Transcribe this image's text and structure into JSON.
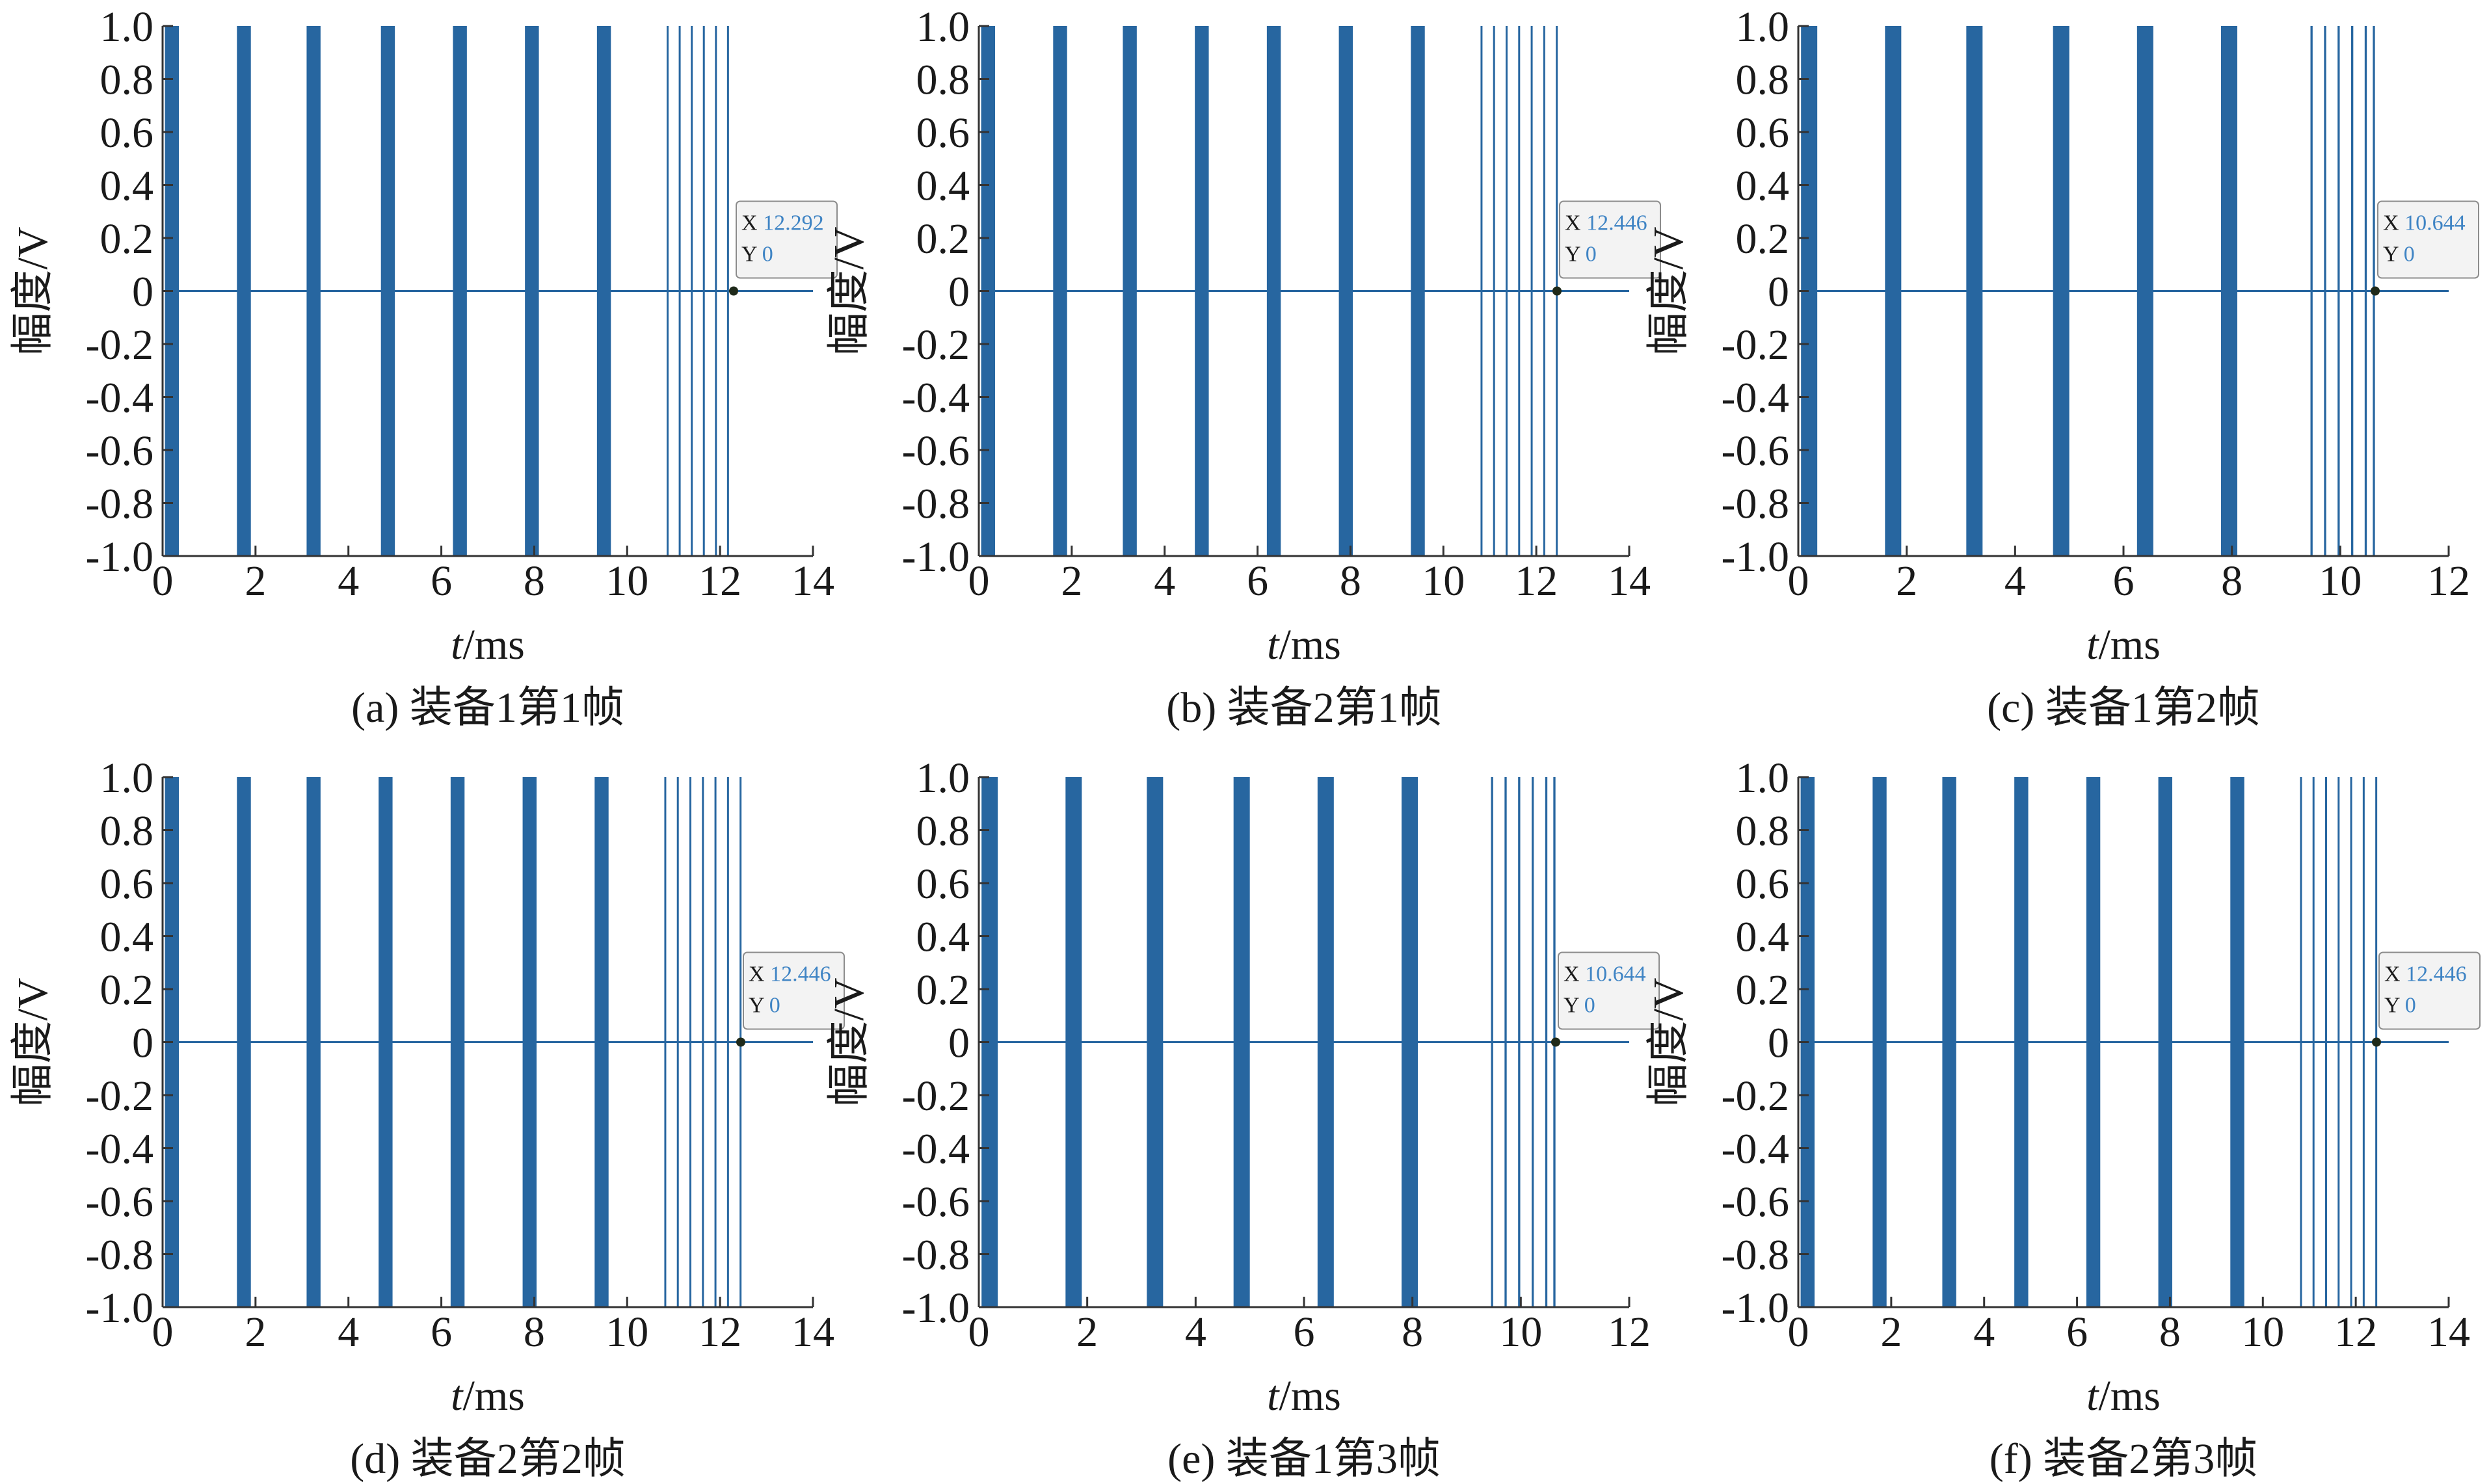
{
  "colors": {
    "signal": "#2766a0",
    "axis": "#333333",
    "datatip_value": "#3f84c4",
    "datatip_bg": "#f3f3f3",
    "datatip_border": "#8c8c8c"
  },
  "chart_data": [
    {
      "type": "line",
      "caption": "(a) 装备1第1帧",
      "xlabel": "t/ms",
      "ylabel": "幅度/V",
      "xlim": [
        0,
        14
      ],
      "ylim": [
        -1.0,
        1.0
      ],
      "xticks": [
        "0",
        "2",
        "4",
        "6",
        "8",
        "10",
        "12",
        "14"
      ],
      "yticks": [
        "1.0",
        "0.8",
        "0.6",
        "0.4",
        "0.2",
        "0",
        "-0.2",
        "-0.4",
        "-0.6",
        "-0.8",
        "-1.0"
      ],
      "series": [
        {
          "values": [
            {
              "start": 0.05,
              "end": 0.35
            },
            {
              "start": 1.6,
              "end": 1.9
            },
            {
              "start": 3.1,
              "end": 3.4
            },
            {
              "start": 4.7,
              "end": 5.0
            },
            {
              "start": 6.25,
              "end": 6.55
            },
            {
              "start": 7.8,
              "end": 8.1
            },
            {
              "start": 9.35,
              "end": 9.65
            },
            {
              "start": 10.85,
              "end": 10.89
            },
            {
              "start": 11.11,
              "end": 11.15
            },
            {
              "start": 11.37,
              "end": 11.41
            },
            {
              "start": 11.63,
              "end": 11.67
            },
            {
              "start": 11.89,
              "end": 11.93
            },
            {
              "start": 12.15,
              "end": 12.19
            }
          ]
        }
      ],
      "datatip": {
        "x_label": "X",
        "x_value": "12.292",
        "y_label": "Y",
        "y_value": "0",
        "x": 12.292,
        "y": 0
      }
    },
    {
      "type": "line",
      "caption": "(b) 装备2第1帧",
      "xlabel": "t/ms",
      "ylabel": "幅度/V",
      "xlim": [
        0,
        14
      ],
      "ylim": [
        -1.0,
        1.0
      ],
      "xticks": [
        "0",
        "2",
        "4",
        "6",
        "8",
        "10",
        "12",
        "14"
      ],
      "yticks": [
        "1.0",
        "0.8",
        "0.6",
        "0.4",
        "0.2",
        "0",
        "-0.2",
        "-0.4",
        "-0.6",
        "-0.8",
        "-1.0"
      ],
      "series": [
        {
          "values": [
            {
              "start": 0.05,
              "end": 0.35
            },
            {
              "start": 1.6,
              "end": 1.9
            },
            {
              "start": 3.1,
              "end": 3.4
            },
            {
              "start": 4.65,
              "end": 4.95
            },
            {
              "start": 6.2,
              "end": 6.5
            },
            {
              "start": 7.75,
              "end": 8.05
            },
            {
              "start": 9.3,
              "end": 9.6
            },
            {
              "start": 10.8,
              "end": 10.84
            },
            {
              "start": 11.07,
              "end": 11.11
            },
            {
              "start": 11.34,
              "end": 11.38
            },
            {
              "start": 11.61,
              "end": 11.65
            },
            {
              "start": 11.88,
              "end": 11.92
            },
            {
              "start": 12.15,
              "end": 12.19
            },
            {
              "start": 12.42,
              "end": 12.46
            }
          ]
        }
      ],
      "datatip": {
        "x_label": "X",
        "x_value": "12.446",
        "y_label": "Y",
        "y_value": "0",
        "x": 12.446,
        "y": 0
      }
    },
    {
      "type": "line",
      "caption": "(c) 装备1第2帧",
      "xlabel": "t/ms",
      "ylabel": "幅度/V",
      "xlim": [
        0,
        12
      ],
      "ylim": [
        -1.0,
        1.0
      ],
      "xticks": [
        "0",
        "2",
        "4",
        "6",
        "8",
        "10",
        "12"
      ],
      "yticks": [
        "1.0",
        "0.8",
        "0.6",
        "0.4",
        "0.2",
        "0",
        "-0.2",
        "-0.4",
        "-0.6",
        "-0.8",
        "-1.0"
      ],
      "series": [
        {
          "values": [
            {
              "start": 0.05,
              "end": 0.35
            },
            {
              "start": 1.6,
              "end": 1.9
            },
            {
              "start": 3.1,
              "end": 3.4
            },
            {
              "start": 4.7,
              "end": 5.0
            },
            {
              "start": 6.25,
              "end": 6.55
            },
            {
              "start": 7.8,
              "end": 8.1
            },
            {
              "start": 9.45,
              "end": 9.49
            },
            {
              "start": 9.7,
              "end": 9.74
            },
            {
              "start": 9.95,
              "end": 9.99
            },
            {
              "start": 10.2,
              "end": 10.24
            },
            {
              "start": 10.45,
              "end": 10.49
            },
            {
              "start": 10.6,
              "end": 10.64
            }
          ]
        }
      ],
      "datatip": {
        "x_label": "X",
        "x_value": "10.644",
        "y_label": "Y",
        "y_value": "0",
        "x": 10.644,
        "y": 0
      }
    },
    {
      "type": "line",
      "caption": "(d) 装备2第2帧",
      "xlabel": "t/ms",
      "ylabel": "幅度/V",
      "xlim": [
        0,
        14
      ],
      "ylim": [
        -1.0,
        1.0
      ],
      "xticks": [
        "0",
        "2",
        "4",
        "6",
        "8",
        "10",
        "12",
        "14"
      ],
      "yticks": [
        "1.0",
        "0.8",
        "0.6",
        "0.4",
        "0.2",
        "0",
        "-0.2",
        "-0.4",
        "-0.6",
        "-0.8",
        "-1.0"
      ],
      "series": [
        {
          "values": [
            {
              "start": 0.05,
              "end": 0.35
            },
            {
              "start": 1.6,
              "end": 1.9
            },
            {
              "start": 3.1,
              "end": 3.4
            },
            {
              "start": 4.65,
              "end": 4.95
            },
            {
              "start": 6.2,
              "end": 6.5
            },
            {
              "start": 7.75,
              "end": 8.05
            },
            {
              "start": 9.3,
              "end": 9.6
            },
            {
              "start": 10.8,
              "end": 10.84
            },
            {
              "start": 11.07,
              "end": 11.11
            },
            {
              "start": 11.34,
              "end": 11.38
            },
            {
              "start": 11.61,
              "end": 11.65
            },
            {
              "start": 11.88,
              "end": 11.92
            },
            {
              "start": 12.15,
              "end": 12.19
            },
            {
              "start": 12.42,
              "end": 12.46
            }
          ]
        }
      ],
      "datatip": {
        "x_label": "X",
        "x_value": "12.446",
        "y_label": "Y",
        "y_value": "0",
        "x": 12.446,
        "y": 0
      }
    },
    {
      "type": "line",
      "caption": "(e) 装备1第3帧",
      "xlabel": "t/ms",
      "ylabel": "幅度/V",
      "xlim": [
        0,
        12
      ],
      "ylim": [
        -1.0,
        1.0
      ],
      "xticks": [
        "0",
        "2",
        "4",
        "6",
        "8",
        "10",
        "12"
      ],
      "yticks": [
        "1.0",
        "0.8",
        "0.6",
        "0.4",
        "0.2",
        "0",
        "-0.2",
        "-0.4",
        "-0.6",
        "-0.8",
        "-1.0"
      ],
      "series": [
        {
          "values": [
            {
              "start": 0.05,
              "end": 0.35
            },
            {
              "start": 1.6,
              "end": 1.9
            },
            {
              "start": 3.1,
              "end": 3.4
            },
            {
              "start": 4.7,
              "end": 5.0
            },
            {
              "start": 6.25,
              "end": 6.55
            },
            {
              "start": 7.8,
              "end": 8.1
            },
            {
              "start": 9.45,
              "end": 9.49
            },
            {
              "start": 9.7,
              "end": 9.74
            },
            {
              "start": 9.95,
              "end": 9.99
            },
            {
              "start": 10.2,
              "end": 10.24
            },
            {
              "start": 10.45,
              "end": 10.49
            },
            {
              "start": 10.6,
              "end": 10.64
            }
          ]
        }
      ],
      "datatip": {
        "x_label": "X",
        "x_value": "10.644",
        "y_label": "Y",
        "y_value": "0",
        "x": 10.644,
        "y": 0
      }
    },
    {
      "type": "line",
      "caption": "(f) 装备2第3帧",
      "xlabel": "t/ms",
      "ylabel": "幅度/V",
      "xlim": [
        0,
        14
      ],
      "ylim": [
        -1.0,
        1.0
      ],
      "xticks": [
        "0",
        "2",
        "4",
        "6",
        "8",
        "10",
        "12",
        "14"
      ],
      "yticks": [
        "1.0",
        "0.8",
        "0.6",
        "0.4",
        "0.2",
        "0",
        "-0.2",
        "-0.4",
        "-0.6",
        "-0.8",
        "-1.0"
      ],
      "series": [
        {
          "values": [
            {
              "start": 0.05,
              "end": 0.35
            },
            {
              "start": 1.6,
              "end": 1.9
            },
            {
              "start": 3.1,
              "end": 3.4
            },
            {
              "start": 4.65,
              "end": 4.95
            },
            {
              "start": 6.2,
              "end": 6.5
            },
            {
              "start": 7.75,
              "end": 8.05
            },
            {
              "start": 9.3,
              "end": 9.6
            },
            {
              "start": 10.8,
              "end": 10.84
            },
            {
              "start": 11.07,
              "end": 11.11
            },
            {
              "start": 11.34,
              "end": 11.38
            },
            {
              "start": 11.61,
              "end": 11.65
            },
            {
              "start": 11.88,
              "end": 11.92
            },
            {
              "start": 12.15,
              "end": 12.19
            },
            {
              "start": 12.42,
              "end": 12.46
            }
          ]
        }
      ],
      "datatip": {
        "x_label": "X",
        "x_value": "12.446",
        "y_label": "Y",
        "y_value": "0",
        "x": 12.446,
        "y": 0
      }
    }
  ]
}
